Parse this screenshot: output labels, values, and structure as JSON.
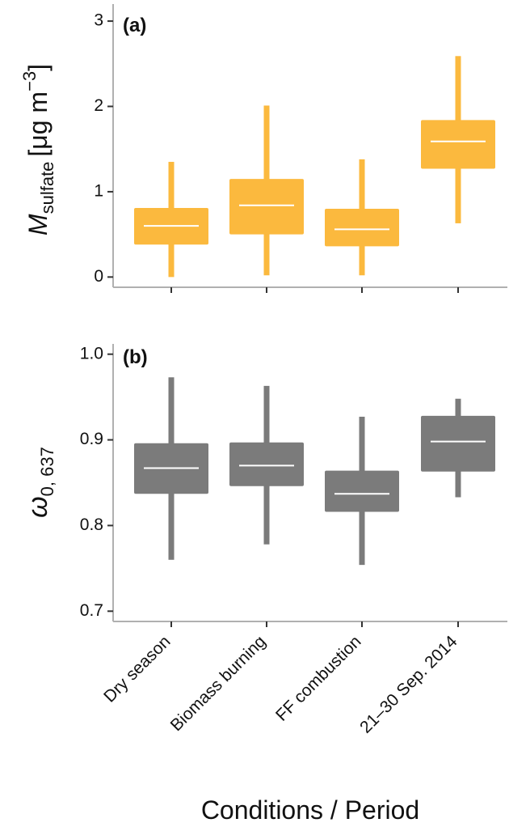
{
  "chart_data": [
    {
      "type": "box",
      "panel_label": "(a)",
      "ylabel": {
        "symbol": "M",
        "subscript": "sulfate",
        "unit": "[μg m",
        "exponent": "−3",
        "close": "]"
      },
      "categories": [
        null,
        null,
        null,
        null
      ],
      "color": "#fbb93e",
      "median_color": "#ffffff",
      "boxes": {
        "min": [
          0.0,
          0.02,
          0.02,
          0.63
        ],
        "q1": [
          0.38,
          0.5,
          0.36,
          1.27
        ],
        "median": [
          0.6,
          0.84,
          0.56,
          1.59
        ],
        "q3": [
          0.81,
          1.15,
          0.8,
          1.84
        ],
        "max": [
          1.35,
          2.01,
          1.38,
          2.59
        ]
      },
      "ylim": [
        -0.12,
        3.2
      ],
      "yticks": [
        0,
        1,
        2,
        3
      ]
    },
    {
      "type": "box",
      "panel_label": "(b)",
      "ylabel": {
        "symbol": "ω",
        "subscript": "0, 637"
      },
      "categories": [
        "Dry season",
        "Biomass burning",
        "FF combustion",
        "21–30 Sep. 2014"
      ],
      "xlabel": "Conditions / Period",
      "color": "#7b7b7b",
      "median_color": "#ffffff",
      "boxes": {
        "min": [
          0.76,
          0.778,
          0.754,
          0.833
        ],
        "q1": [
          0.837,
          0.846,
          0.816,
          0.863
        ],
        "median": [
          0.867,
          0.87,
          0.837,
          0.898
        ],
        "q3": [
          0.896,
          0.897,
          0.864,
          0.928
        ],
        "max": [
          0.973,
          0.963,
          0.927,
          0.948
        ]
      },
      "ylim": [
        0.688,
        1.012
      ],
      "yticks": [
        0.7,
        0.8,
        0.9,
        {
          "value": 1,
          "label": "1.0"
        }
      ]
    }
  ]
}
